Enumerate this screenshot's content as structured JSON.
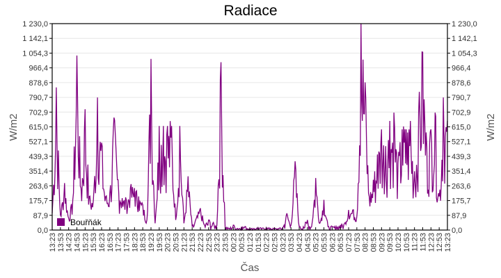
{
  "chart_data": {
    "type": "line",
    "title": "Radiace",
    "xlabel": "Čas",
    "ylabel": "W/m2",
    "ylabel_right": "W/m2",
    "ylim": [
      0,
      1230
    ],
    "grid": true,
    "legend_position": "lower-left",
    "legend": [
      "Bouřňák"
    ],
    "yticks": [
      "0,0",
      "87,9",
      "175,7",
      "263,6",
      "351,4",
      "439,3",
      "527,1",
      "615,0",
      "702,9",
      "790,7",
      "878,6",
      "966,4",
      "1 054,3",
      "1 142,1",
      "1 230,0"
    ],
    "xticks": [
      "13:23",
      "13:53",
      "14:23",
      "14:53",
      "15:23",
      "15:53",
      "16:23",
      "16:53",
      "17:23",
      "17:53",
      "18:23",
      "18:53",
      "19:23",
      "19:53",
      "20:23",
      "20:53",
      "21:23",
      "21:53",
      "22:23",
      "22:53",
      "23:23",
      "23:53",
      "00:23",
      "00:53",
      "01:23",
      "01:53",
      "02:23",
      "02:53",
      "03:23",
      "03:53",
      "04:23",
      "04:53",
      "05:23",
      "05:53",
      "06:23",
      "06:53",
      "07:23",
      "07:53",
      "08:23",
      "08:53",
      "09:23",
      "09:53",
      "10:23",
      "10:53",
      "11:23",
      "11:53",
      "12:23",
      "12:53",
      "13:23"
    ],
    "series": [
      {
        "name": "Bouřňák",
        "color": "#800080",
        "x": [
          "13:23",
          "13:38",
          "13:53",
          "14:08",
          "14:23",
          "14:38",
          "14:53",
          "15:08",
          "15:23",
          "15:38",
          "15:53",
          "16:08",
          "16:23",
          "16:38",
          "16:53",
          "17:08",
          "17:23",
          "17:38",
          "17:53",
          "18:08",
          "18:23",
          "18:38",
          "18:53",
          "19:08",
          "19:23",
          "19:38",
          "19:53",
          "20:08",
          "20:23",
          "20:38",
          "20:53",
          "21:08",
          "21:23",
          "21:38",
          "21:53",
          "22:08",
          "22:23",
          "22:38",
          "22:53",
          "23:08",
          "23:23",
          "23:38",
          "23:53",
          "00:08",
          "00:23",
          "00:38",
          "00:53",
          "01:08",
          "01:23",
          "01:38",
          "01:53",
          "02:08",
          "02:23",
          "02:38",
          "02:53",
          "03:08",
          "03:23",
          "03:38",
          "03:53",
          "04:08",
          "04:23",
          "04:38",
          "04:53",
          "05:08",
          "05:23",
          "05:38",
          "05:53",
          "06:08",
          "06:23",
          "06:38",
          "06:53",
          "07:08",
          "07:23",
          "07:38",
          "07:53",
          "08:08",
          "08:23",
          "08:38",
          "08:53",
          "09:08",
          "09:23",
          "09:38",
          "09:53",
          "10:08",
          "10:23",
          "10:38",
          "10:53",
          "11:08",
          "11:23",
          "11:38",
          "11:53",
          "12:08",
          "12:23",
          "12:38",
          "12:53",
          "13:08",
          "13:23"
        ],
        "values": [
          100,
          850,
          90,
          280,
          70,
          180,
          1040,
          250,
          720,
          200,
          180,
          790,
          520,
          200,
          220,
          670,
          300,
          190,
          180,
          250,
          250,
          200,
          150,
          60,
          1020,
          40,
          620,
          620,
          620,
          620,
          60,
          620,
          40,
          320,
          20,
          70,
          130,
          30,
          60,
          40,
          30,
          1000,
          20,
          10,
          30,
          10,
          20,
          20,
          10,
          10,
          15,
          10,
          15,
          10,
          10,
          10,
          15,
          100,
          30,
          410,
          20,
          20,
          60,
          20,
          310,
          40,
          180,
          20,
          20,
          20,
          30,
          40,
          120,
          120,
          80,
          1230,
          880,
          200,
          300,
          450,
          600,
          500,
          650,
          700,
          400,
          600,
          600,
          650,
          350,
          700,
          1060,
          500,
          600,
          700,
          200,
          790,
          650
        ]
      }
    ]
  },
  "legend": {
    "label": "Bouřňák",
    "color": "#800080"
  }
}
